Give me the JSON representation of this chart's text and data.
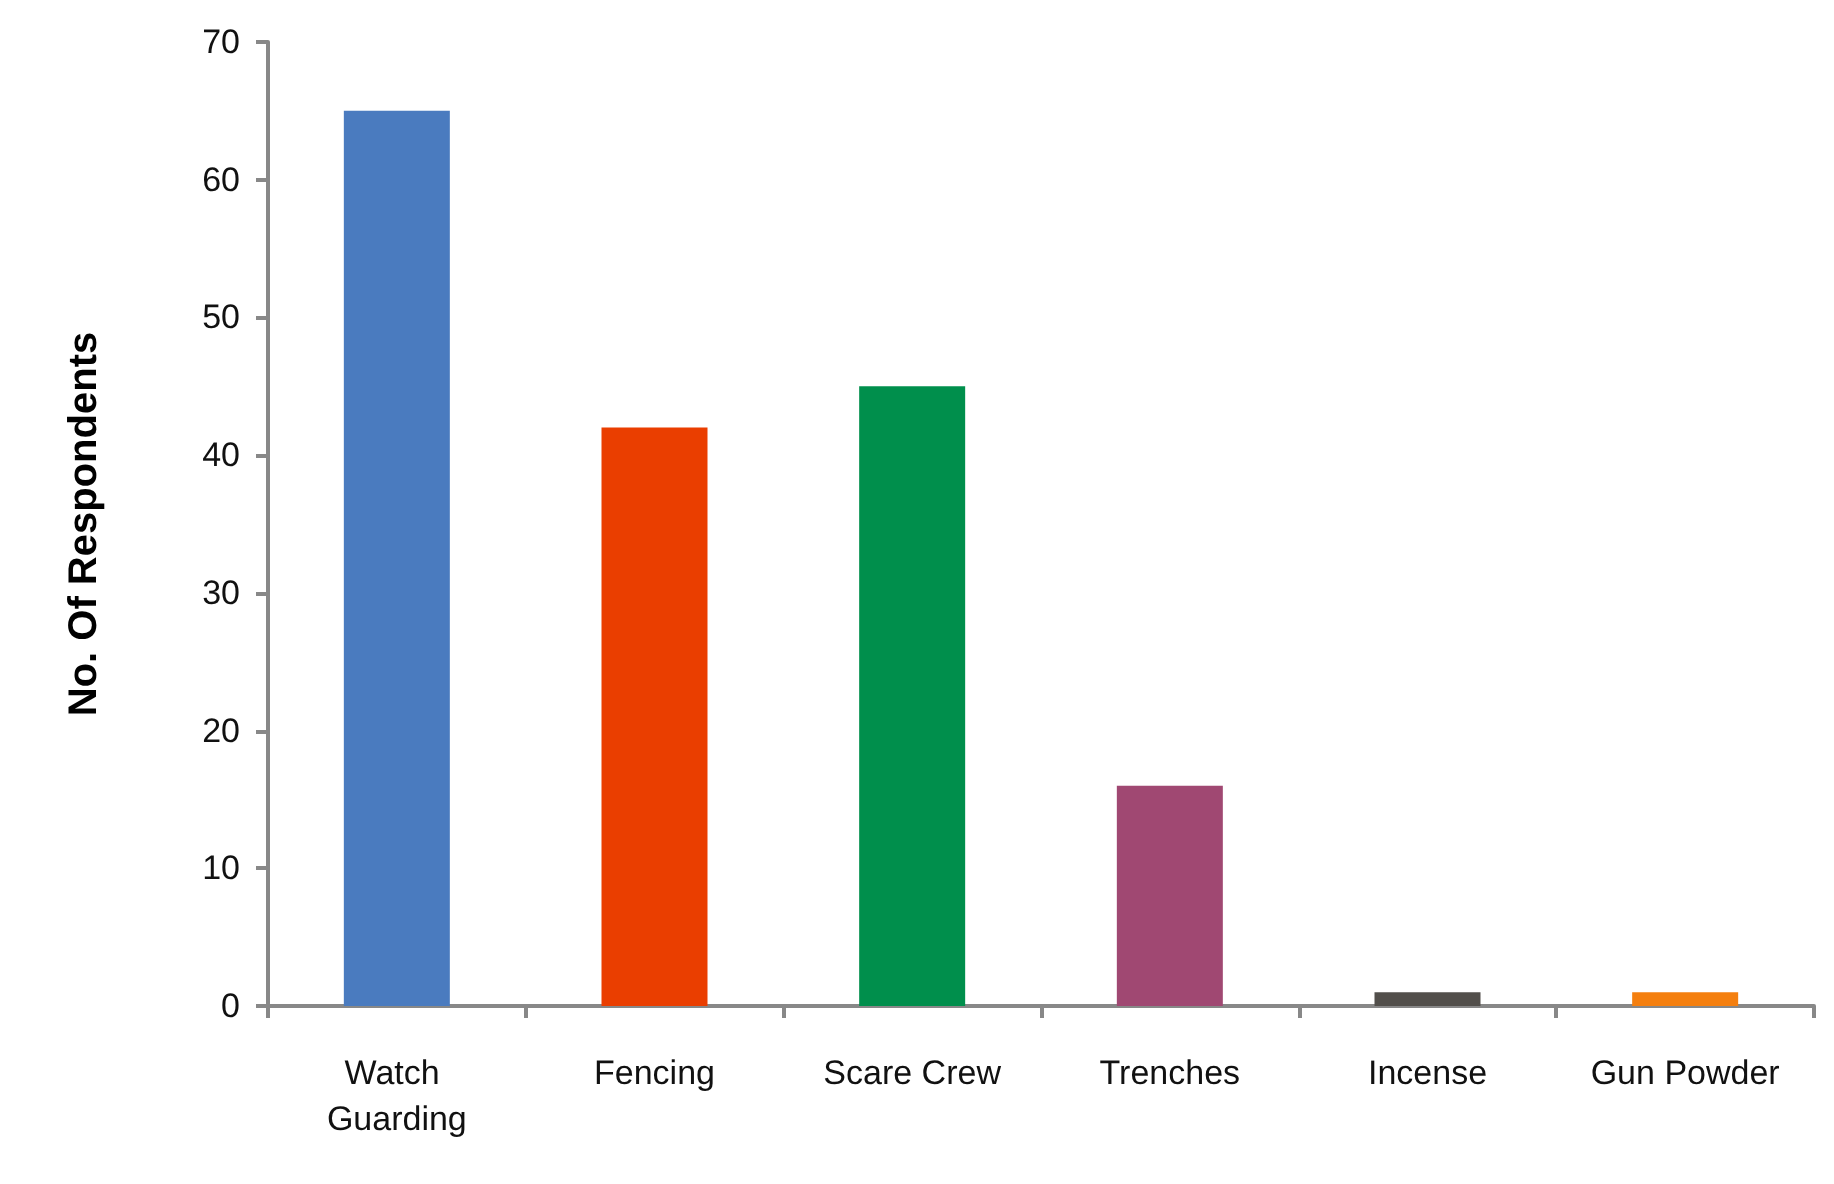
{
  "chart_data": {
    "type": "bar",
    "ylabel": "No. Of Respondents",
    "categories": [
      "Watch Guarding",
      "Fencing",
      "Scare Crew",
      "Trenches",
      "Incense",
      "Gun Powder"
    ],
    "values": [
      65,
      42,
      45,
      16,
      1,
      1
    ],
    "colors": [
      "#4a7bbf",
      "#ea3e00",
      "#008f4c",
      "#a04872",
      "#524f4b",
      "#f47f0f"
    ],
    "ylim": [
      0,
      70
    ],
    "yticks": [
      0,
      10,
      20,
      30,
      40,
      50,
      60,
      70
    ],
    "grid": false
  }
}
